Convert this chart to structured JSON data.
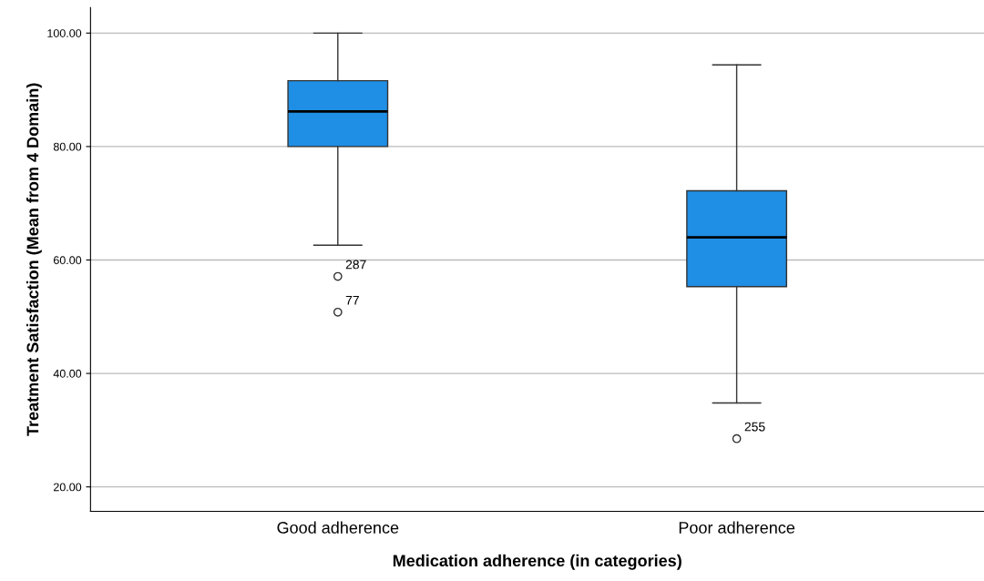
{
  "chart_data": {
    "type": "box",
    "xlabel": "Medication adherence (in categories)",
    "ylabel": "Treatment Satisfaction (Mean from 4 Domain)",
    "categories": [
      "Good adherence",
      "Poor adherence"
    ],
    "color": "#1f8fe5",
    "boxes": [
      {
        "low": 62.6,
        "q1": 80.0,
        "median": 86.2,
        "q3": 91.6,
        "high": 100.0,
        "outliers": [
          57.1,
          50.8
        ]
      },
      {
        "low": 34.8,
        "q1": 55.3,
        "median": 64.0,
        "q3": 72.2,
        "high": 94.4,
        "outliers": [
          28.5
        ]
      }
    ],
    "annotations": [
      "287",
      "77",
      "255"
    ],
    "ylim": [
      15.7,
      104.5
    ],
    "yticks": [
      {
        "value": 20,
        "label": "20.00"
      },
      {
        "value": 40,
        "label": "40.00"
      },
      {
        "value": 60,
        "label": "60.00"
      },
      {
        "value": 80,
        "label": "80.00"
      },
      {
        "value": 100,
        "label": "100.00"
      }
    ],
    "grid": "y"
  }
}
